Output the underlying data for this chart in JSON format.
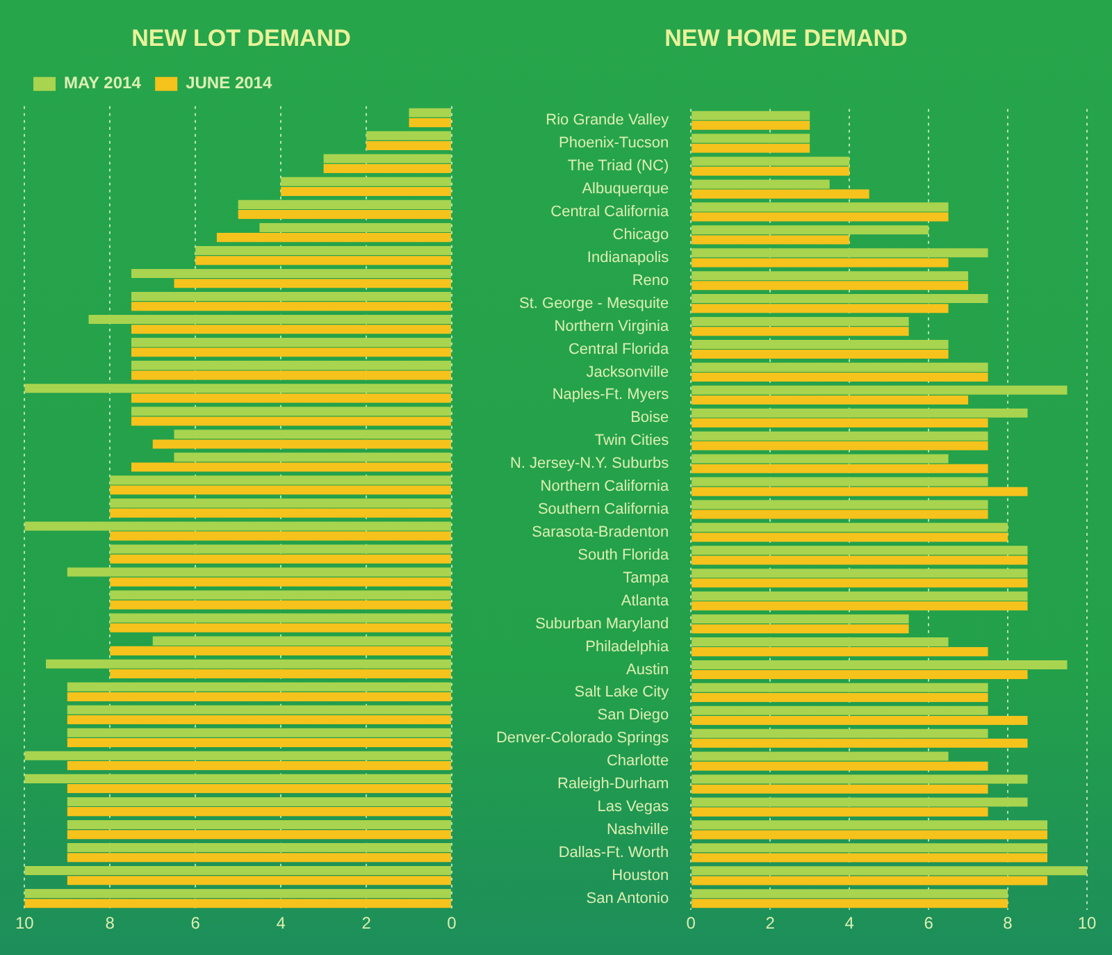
{
  "chart_data": [
    {
      "type": "bar",
      "title": "NEW LOT DEMAND",
      "orientation": "horizontal",
      "legend": "top left",
      "grid": "x",
      "categories": [
        null,
        null,
        null,
        null,
        null,
        null,
        null,
        null,
        null,
        null,
        null,
        null,
        null,
        null,
        null,
        null,
        null,
        null,
        null,
        null,
        null,
        null,
        null,
        null,
        null,
        null,
        null,
        null,
        null,
        null,
        null,
        null,
        null,
        null,
        null
      ],
      "series": [
        {
          "name": "MAY 2014",
          "color": "#a9d44f",
          "values": [
            1,
            2,
            3,
            4,
            5,
            4.5,
            6,
            7.5,
            7.5,
            8.5,
            7.5,
            7.5,
            10,
            7.5,
            6.5,
            6.5,
            8,
            8,
            10,
            8,
            9,
            8,
            8,
            7,
            9.5,
            9,
            9,
            9,
            10,
            10,
            9,
            9,
            9,
            10,
            10
          ]
        },
        {
          "name": "JUNE 2014",
          "color": "#f6c21c",
          "values": [
            1,
            2,
            3,
            4,
            5,
            5.5,
            6,
            6.5,
            7.5,
            7.5,
            7.5,
            7.5,
            7.5,
            7.5,
            7,
            7.5,
            8,
            8,
            8,
            8,
            8,
            8,
            8,
            8,
            8,
            9,
            9,
            9,
            9,
            9,
            9,
            9,
            9,
            9,
            10
          ]
        }
      ],
      "xlim": [
        10,
        0
      ],
      "xticks": [
        10,
        8,
        6,
        4,
        2,
        0
      ]
    },
    {
      "type": "bar",
      "title": "NEW HOME DEMAND",
      "orientation": "horizontal",
      "grid": "x",
      "categories": [
        "Rio Grande Valley",
        "Phoenix-Tucson",
        "The Triad (NC)",
        "Albuquerque",
        "Central California",
        "Chicago",
        "Indianapolis",
        "Reno",
        "St. George - Mesquite",
        "Northern Virginia",
        "Central Florida",
        "Jacksonville",
        "Naples-Ft. Myers",
        "Boise",
        "Twin Cities",
        "N. Jersey-N.Y. Suburbs",
        "Northern California",
        "Southern California",
        "Sarasota-Bradenton",
        "South Florida",
        "Tampa",
        "Atlanta",
        "Suburban Maryland",
        "Philadelphia",
        "Austin",
        "Salt Lake City",
        "San Diego",
        "Denver-Colorado Springs",
        "Charlotte",
        "Raleigh-Durham",
        "Las Vegas",
        "Nashville",
        "Dallas-Ft. Worth",
        "Houston",
        "San Antonio"
      ],
      "series": [
        {
          "color": "#a9d44f",
          "values": [
            3,
            3,
            4,
            3.5,
            6.5,
            6,
            7.5,
            7,
            7.5,
            5.5,
            6.5,
            7.5,
            9.5,
            8.5,
            7.5,
            6.5,
            7.5,
            7.5,
            8,
            8.5,
            8.5,
            8.5,
            5.5,
            6.5,
            9.5,
            7.5,
            7.5,
            7.5,
            6.5,
            8.5,
            8.5,
            9,
            9,
            10,
            8
          ]
        },
        {
          "color": "#f6c21c",
          "values": [
            3,
            3,
            4,
            4.5,
            6.5,
            4,
            6.5,
            7,
            6.5,
            5.5,
            6.5,
            7.5,
            7,
            7.5,
            7.5,
            7.5,
            8.5,
            7.5,
            8,
            8.5,
            8.5,
            8.5,
            5.5,
            7.5,
            8.5,
            7.5,
            8.5,
            8.5,
            7.5,
            7.5,
            7.5,
            9,
            9,
            9,
            8
          ]
        }
      ],
      "xlim": [
        0,
        10
      ],
      "xticks": [
        0,
        2,
        4,
        6,
        8,
        10
      ]
    }
  ]
}
